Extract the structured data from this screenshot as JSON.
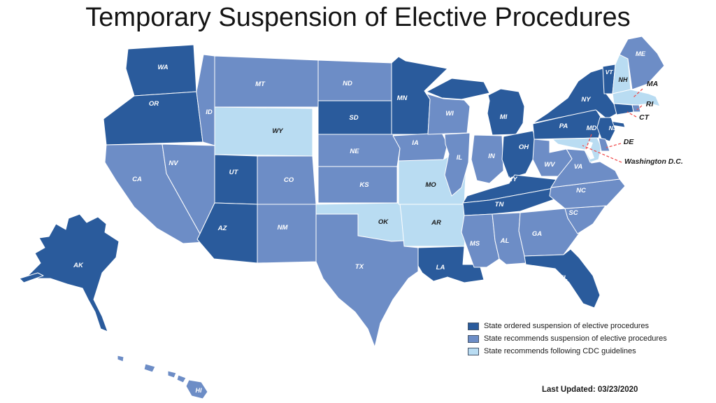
{
  "title": "Temporary Suspension of Elective Procedures",
  "last_updated": "Last Updated: 03/23/2020",
  "legend": {
    "items": [
      {
        "key": "ordered",
        "label": "State ordered suspension of elective procedures",
        "color": "#2A5B9C"
      },
      {
        "key": "recommends",
        "label": "State recommends suspension of elective procedures",
        "color": "#6D8DC6"
      },
      {
        "key": "cdc",
        "label": "State recommends following CDC guidelines",
        "color": "#B9DCF2"
      }
    ]
  },
  "map": {
    "label_colors": {
      "on_dark": "#FFFFFF",
      "on_light": "#1A1A1A"
    },
    "callout_line_color": "#F05050",
    "states": [
      {
        "abbr": "WA",
        "category": "ordered"
      },
      {
        "abbr": "OR",
        "category": "ordered"
      },
      {
        "abbr": "CA",
        "category": "recommends"
      },
      {
        "abbr": "NV",
        "category": "recommends"
      },
      {
        "abbr": "ID",
        "category": "recommends"
      },
      {
        "abbr": "MT",
        "category": "recommends"
      },
      {
        "abbr": "WY",
        "category": "cdc"
      },
      {
        "abbr": "UT",
        "category": "ordered"
      },
      {
        "abbr": "CO",
        "category": "recommends"
      },
      {
        "abbr": "AZ",
        "category": "ordered"
      },
      {
        "abbr": "NM",
        "category": "recommends"
      },
      {
        "abbr": "ND",
        "category": "recommends"
      },
      {
        "abbr": "SD",
        "category": "ordered"
      },
      {
        "abbr": "NE",
        "category": "recommends"
      },
      {
        "abbr": "KS",
        "category": "recommends"
      },
      {
        "abbr": "OK",
        "category": "cdc"
      },
      {
        "abbr": "TX",
        "category": "recommends"
      },
      {
        "abbr": "MN",
        "category": "ordered"
      },
      {
        "abbr": "IA",
        "category": "recommends"
      },
      {
        "abbr": "MO",
        "category": "cdc"
      },
      {
        "abbr": "AR",
        "category": "cdc"
      },
      {
        "abbr": "LA",
        "category": "ordered"
      },
      {
        "abbr": "WI",
        "category": "recommends"
      },
      {
        "abbr": "IL",
        "category": "recommends"
      },
      {
        "abbr": "IN",
        "category": "recommends"
      },
      {
        "abbr": "MI",
        "category": "ordered"
      },
      {
        "abbr": "OH",
        "category": "ordered"
      },
      {
        "abbr": "KY",
        "category": "ordered"
      },
      {
        "abbr": "TN",
        "category": "ordered"
      },
      {
        "abbr": "MS",
        "category": "recommends"
      },
      {
        "abbr": "AL",
        "category": "recommends"
      },
      {
        "abbr": "GA",
        "category": "recommends"
      },
      {
        "abbr": "FL",
        "category": "ordered"
      },
      {
        "abbr": "SC",
        "category": "recommends"
      },
      {
        "abbr": "NC",
        "category": "recommends"
      },
      {
        "abbr": "VA",
        "category": "recommends"
      },
      {
        "abbr": "WV",
        "category": "recommends"
      },
      {
        "abbr": "PA",
        "category": "ordered"
      },
      {
        "abbr": "NY",
        "category": "ordered"
      },
      {
        "abbr": "NJ",
        "category": "ordered"
      },
      {
        "abbr": "MD",
        "category": "cdc"
      },
      {
        "abbr": "DE",
        "category": "recommends"
      },
      {
        "abbr": "VT",
        "category": "ordered"
      },
      {
        "abbr": "NH",
        "category": "cdc"
      },
      {
        "abbr": "ME",
        "category": "recommends"
      },
      {
        "abbr": "MA",
        "category": "cdc"
      },
      {
        "abbr": "RI",
        "category": "recommends"
      },
      {
        "abbr": "CT",
        "category": "ordered"
      },
      {
        "abbr": "AK",
        "category": "ordered"
      },
      {
        "abbr": "HI",
        "category": "recommends"
      }
    ],
    "callouts": [
      {
        "id": "MA",
        "label": "MA"
      },
      {
        "id": "RI",
        "label": "RI"
      },
      {
        "id": "CT",
        "label": "CT"
      },
      {
        "id": "DE",
        "label": "DE"
      },
      {
        "id": "MD",
        "label": "MD"
      },
      {
        "id": "DC",
        "label": "Washington D.C."
      }
    ]
  }
}
